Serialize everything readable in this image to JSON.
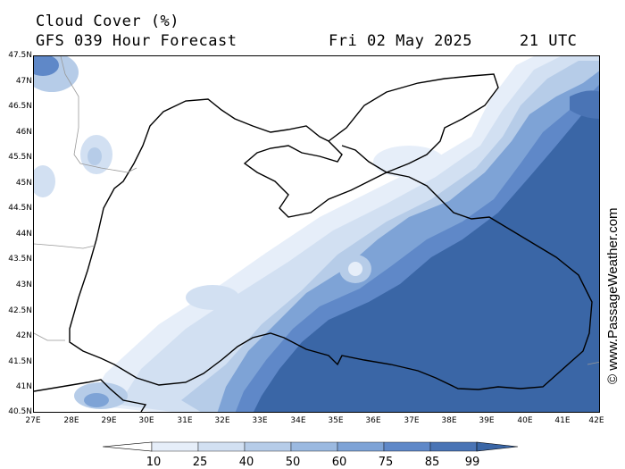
{
  "title": {
    "line1": "Cloud Cover (%)",
    "line2": "GFS 039 Hour Forecast",
    "date": "Fri 02 May 2025",
    "time": "21 UTC"
  },
  "watermark": "© www.PassageWeather.com",
  "map": {
    "region": "Black Sea",
    "lat_range": [
      40.5,
      47.5
    ],
    "lon_range": [
      27,
      42
    ],
    "lat_labels": [
      "47.5N",
      "47N",
      "46.5N",
      "46N",
      "45.5N",
      "45N",
      "44.5N",
      "44N",
      "43.5N",
      "43N",
      "42.5N",
      "42N",
      "41.5N",
      "41N",
      "40.5N"
    ],
    "lon_labels": [
      "27E",
      "28E",
      "29E",
      "30E",
      "31E",
      "32E",
      "33E",
      "34E",
      "35E",
      "36E",
      "37E",
      "38E",
      "39E",
      "40E",
      "41E",
      "42E"
    ]
  },
  "legend": {
    "labels": [
      "10",
      "25",
      "40",
      "50",
      "60",
      "75",
      "85",
      "99"
    ],
    "colors": {
      "c10": "#e6eef9",
      "c25": "#d2e0f2",
      "c40": "#b6cce8",
      "c50": "#9bb9e0",
      "c60": "#7ea3d6",
      "c75": "#5f88c8",
      "c85": "#4a74b5",
      "c99": "#3a66a6"
    }
  }
}
